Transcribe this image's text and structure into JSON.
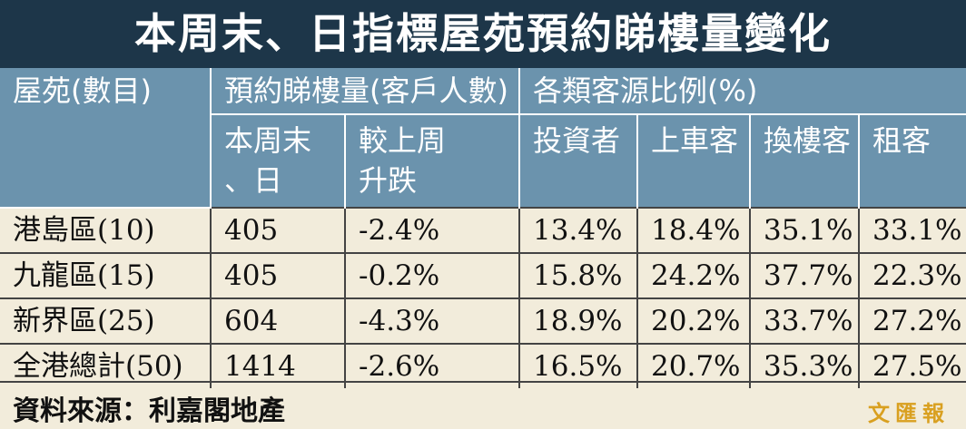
{
  "title": "本周末、日指標屋苑預約睇樓量變化",
  "header": {
    "estate": "屋苑(數目)",
    "viewings": "預約睇樓量(客戶人數)",
    "sources": "各類客源比例(%)",
    "subheaders": [
      [
        "本周末",
        "、日"
      ],
      [
        "較上周",
        "升跌"
      ],
      [
        "投資者"
      ],
      [
        "上車客"
      ],
      [
        "換樓客"
      ],
      [
        "租客"
      ]
    ]
  },
  "rows": [
    [
      "港島區(10)",
      "405",
      "-2.4%",
      "13.4%",
      "18.4%",
      "35.1%",
      "33.1%"
    ],
    [
      "九龍區(15)",
      "405",
      "-0.2%",
      "15.8%",
      "24.2%",
      "37.7%",
      "22.3%"
    ],
    [
      "新界區(25)",
      "604",
      "-4.3%",
      "18.9%",
      "20.2%",
      "33.7%",
      "27.2%"
    ],
    [
      "全港總計(50)",
      "1414",
      "-2.6%",
      "16.5%",
      "20.7%",
      "35.3%",
      "27.5%"
    ]
  ],
  "source": "資料來源：利嘉閣地產",
  "watermark": "文匯報"
}
